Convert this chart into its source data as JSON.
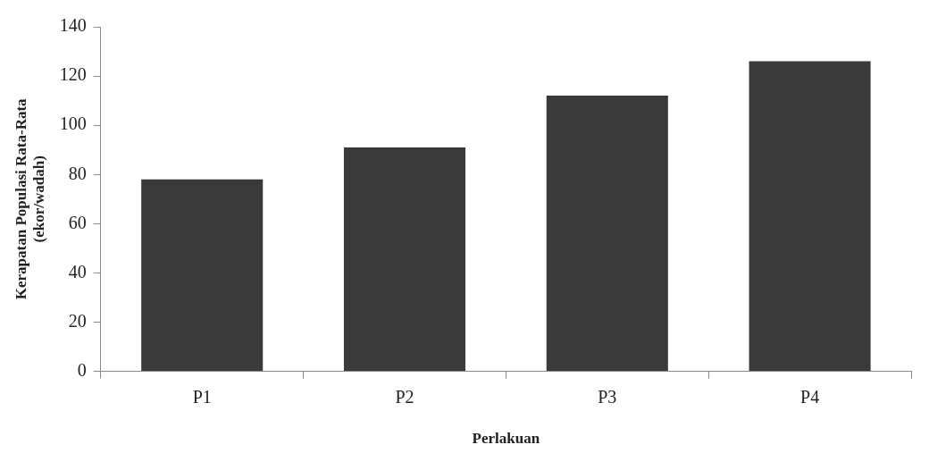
{
  "chart_data": {
    "type": "bar",
    "xlabel": "Perlakuan",
    "ylabel": "Kerapatan Populasi Rata-Rata\n(ekor/wadah)",
    "categories": [
      "P1",
      "P2",
      "P3",
      "P4"
    ],
    "values": [
      78,
      91,
      112,
      126
    ],
    "color": "#3a3a3a",
    "ylim": [
      0,
      140
    ],
    "yticks": [
      0,
      20,
      40,
      60,
      80,
      100,
      120,
      140
    ],
    "grid": false,
    "legend": false
  }
}
